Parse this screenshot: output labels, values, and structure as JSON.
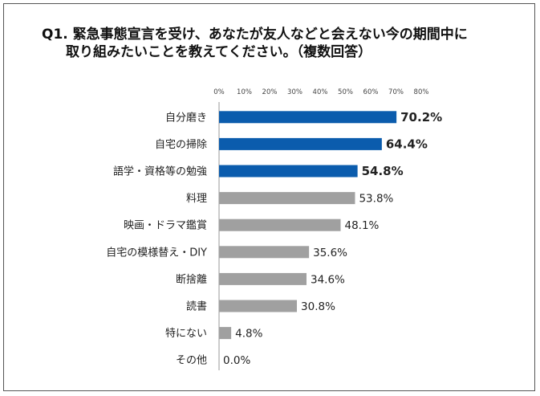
{
  "title": {
    "line1": "Q1. 緊急事態宣言を受け、あなたが友人などと会えない今の期間中に",
    "line2": "取り組みたいことを教えてください。（複数回答）"
  },
  "colors": {
    "highlight": "#0b5cad",
    "normal": "#a0a0a0",
    "axis": "#9a9a9a"
  },
  "chart_data": {
    "type": "bar",
    "orientation": "horizontal",
    "title": "Q1. 緊急事態宣言を受け、あなたが友人などと会えない今の期間中に取り組みたいことを教えてください。（複数回答）",
    "categories": [
      "自分磨き",
      "自宅の掃除",
      "語学・資格等の勉強",
      "料理",
      "映画・ドラマ鑑賞",
      "自宅の模様替え・DIY",
      "断捨離",
      "読書",
      "特にない",
      "その他"
    ],
    "values": [
      70.2,
      64.4,
      54.8,
      53.8,
      48.1,
      35.6,
      34.6,
      30.8,
      4.8,
      0.0
    ],
    "value_labels": [
      "70.2%",
      "64.4%",
      "54.8%",
      "53.8%",
      "48.1%",
      "35.6%",
      "34.6%",
      "30.8%",
      "4.8%",
      "0.0%"
    ],
    "highlighted": [
      true,
      true,
      true,
      false,
      false,
      false,
      false,
      false,
      false,
      false
    ],
    "ticks": [
      "0%",
      "10%",
      "20%",
      "30%",
      "40%",
      "50%",
      "60%",
      "70%",
      "80%"
    ],
    "xlim": [
      0,
      80
    ],
    "grid": false,
    "legend": "none"
  }
}
